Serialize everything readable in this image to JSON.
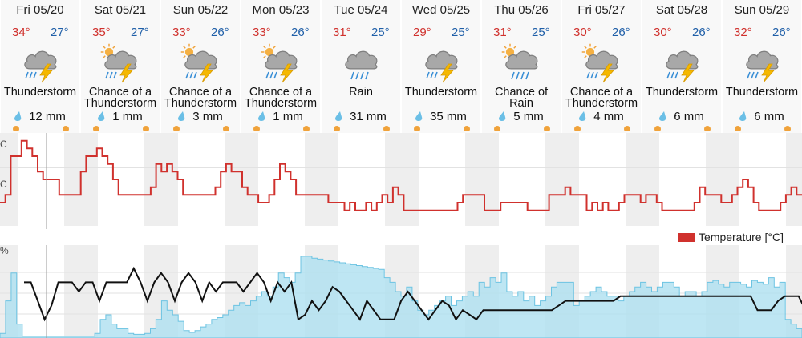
{
  "days": [
    {
      "date": "Fri 05/20",
      "high": "34°",
      "low": "27°",
      "icon": "thunderstorm-icon",
      "condition": [
        "Thunderstorm"
      ],
      "precip": "12 mm"
    },
    {
      "date": "Sat 05/21",
      "high": "35°",
      "low": "27°",
      "icon": "sun-thunderstorm-icon",
      "condition": [
        "Chance of a",
        "Thunderstorm"
      ],
      "precip": "1 mm"
    },
    {
      "date": "Sun 05/22",
      "high": "33°",
      "low": "26°",
      "icon": "sun-thunderstorm-icon",
      "condition": [
        "Chance of a",
        "Thunderstorm"
      ],
      "precip": "3 mm"
    },
    {
      "date": "Mon 05/23",
      "high": "33°",
      "low": "26°",
      "icon": "sun-thunderstorm-icon",
      "condition": [
        "Chance of a",
        "Thunderstorm"
      ],
      "precip": "1 mm"
    },
    {
      "date": "Tue 05/24",
      "high": "31°",
      "low": "25°",
      "icon": "rain-icon",
      "condition": [
        "Rain"
      ],
      "precip": "31 mm"
    },
    {
      "date": "Wed 05/25",
      "high": "29°",
      "low": "25°",
      "icon": "thunderstorm-icon",
      "condition": [
        "Thunderstorm"
      ],
      "precip": "35 mm"
    },
    {
      "date": "Thu 05/26",
      "high": "31°",
      "low": "25°",
      "icon": "sun-rain-icon",
      "condition": [
        "Chance of",
        "Rain"
      ],
      "precip": "5 mm"
    },
    {
      "date": "Fri 05/27",
      "high": "30°",
      "low": "26°",
      "icon": "sun-thunderstorm-icon",
      "condition": [
        "Chance of a",
        "Thunderstorm"
      ],
      "precip": "4 mm"
    },
    {
      "date": "Sat 05/28",
      "high": "30°",
      "low": "26°",
      "icon": "thunderstorm-icon",
      "condition": [
        "Thunderstorm"
      ],
      "precip": "6 mm"
    },
    {
      "date": "Sun 05/29",
      "high": "32°",
      "low": "26°",
      "icon": "thunderstorm-icon",
      "condition": [
        "Thunderstorm"
      ],
      "precip": "6 mm"
    }
  ],
  "axis_labels": {
    "temp_top": "C",
    "temp_mid": "C",
    "percent": "%"
  },
  "legend": {
    "temperature": "Temperature [°C]"
  },
  "colors": {
    "high": "#d0312d",
    "low": "#1f5fa8",
    "temp_line": "#d0312d",
    "bars": "#aee0f0",
    "rh_line": "#111111"
  },
  "chart_data": [
    {
      "type": "line",
      "series": [
        {
          "name": "Temperature [°C]",
          "values": [
            27,
            28,
            33,
            33,
            35,
            34,
            33,
            31,
            30,
            30,
            30,
            28,
            28,
            28,
            28,
            31,
            33,
            33,
            34,
            33,
            32,
            30,
            28,
            28,
            28,
            28,
            28,
            28,
            29,
            32,
            31,
            32,
            31,
            30,
            28,
            28,
            28,
            28,
            28,
            28,
            29,
            31,
            32,
            31,
            31,
            29,
            28,
            28,
            27,
            27,
            28,
            30,
            32,
            31,
            30,
            28,
            28,
            28,
            28,
            28,
            28,
            27,
            27,
            27,
            26,
            27,
            26,
            26,
            27,
            26,
            27,
            28,
            27,
            29,
            28,
            26,
            26,
            26,
            26,
            26,
            26,
            26,
            26,
            26,
            26,
            27,
            28,
            28,
            28,
            28,
            26,
            26,
            26,
            27,
            27,
            27,
            27,
            27,
            26,
            26,
            26,
            26,
            28,
            28,
            28,
            29,
            28,
            28,
            28,
            26,
            27,
            26,
            27,
            26,
            26,
            27,
            28,
            28,
            28,
            27,
            28,
            28,
            27,
            26,
            26,
            26,
            26,
            26,
            26,
            27,
            29,
            28,
            28,
            28,
            27,
            27,
            28,
            29,
            30,
            29,
            27,
            26,
            26,
            26,
            26,
            27,
            28,
            29,
            28
          ]
        }
      ]
    },
    {
      "type": "area",
      "series": [
        {
          "name": "precipitation probability",
          "values": [
            5,
            40,
            70,
            15,
            2,
            2,
            2,
            2,
            2,
            2,
            2,
            2,
            2,
            2,
            2,
            2,
            2,
            5,
            20,
            25,
            15,
            10,
            10,
            5,
            4,
            4,
            5,
            10,
            20,
            40,
            30,
            25,
            18,
            8,
            6,
            8,
            12,
            15,
            20,
            22,
            25,
            30,
            35,
            38,
            35,
            40,
            45,
            50,
            45,
            55,
            70,
            65,
            60,
            70,
            88,
            88,
            86,
            85,
            84,
            83,
            82,
            81,
            80,
            79,
            78,
            77,
            76,
            75,
            74,
            65,
            60,
            50,
            45,
            55,
            40,
            30,
            25,
            30,
            35,
            40,
            45,
            35,
            40,
            45,
            50,
            45,
            60,
            55,
            65,
            60,
            70,
            50,
            45,
            50,
            40,
            45,
            35,
            40,
            45,
            55,
            60,
            60,
            60,
            35,
            40,
            45,
            50,
            55,
            50,
            45,
            45,
            40,
            45,
            50,
            55,
            60,
            55,
            50,
            55,
            60,
            60,
            55,
            45,
            50,
            50,
            45,
            50,
            60,
            62,
            58,
            55,
            60,
            60,
            58,
            55,
            62,
            60,
            58,
            65,
            55,
            60,
            20,
            15,
            10
          ]
        },
        {
          "name": "relative humidity",
          "values": [
            60,
            60,
            40,
            20,
            35,
            60,
            60,
            60,
            50,
            60,
            60,
            40,
            60,
            60,
            60,
            60,
            75,
            60,
            40,
            60,
            70,
            60,
            40,
            60,
            70,
            60,
            40,
            60,
            50,
            60,
            60,
            60,
            50,
            60,
            70,
            60,
            40,
            60,
            50,
            60,
            20,
            25,
            40,
            30,
            40,
            55,
            50,
            40,
            30,
            20,
            40,
            30,
            20,
            20,
            20,
            40,
            50,
            40,
            30,
            20,
            30,
            40,
            35,
            20,
            30,
            25,
            20,
            30,
            30,
            30,
            30,
            30,
            30,
            30,
            30,
            30,
            30,
            30,
            35,
            40,
            40,
            40,
            40,
            40,
            40,
            40,
            40,
            45,
            45,
            45,
            45,
            45,
            45,
            45,
            45,
            45,
            45,
            45,
            45,
            45,
            45,
            45,
            45,
            45,
            45,
            45,
            45,
            30,
            30,
            30,
            40,
            45,
            45,
            45,
            30,
            40,
            45
          ]
        }
      ]
    }
  ]
}
